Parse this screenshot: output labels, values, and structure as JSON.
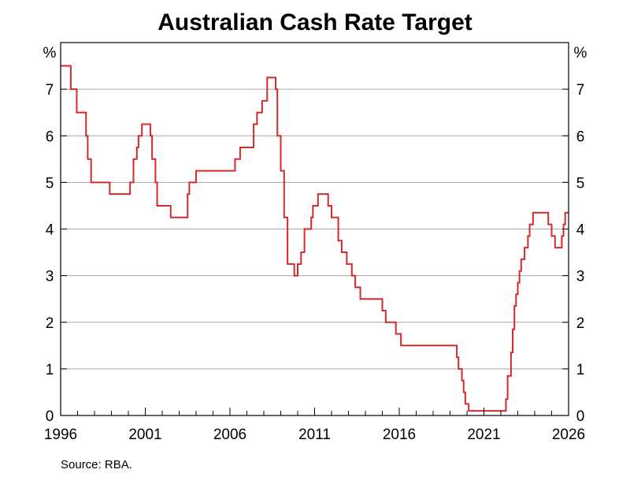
{
  "chart_data": {
    "type": "line",
    "title": "Australian Cash Rate Target",
    "y_unit_left": "%",
    "y_unit_right": "%",
    "source": "Source:   RBA.",
    "x_range": [
      1996.0,
      2026.0
    ],
    "ylim": [
      0,
      8
    ],
    "y_ticks": [
      "0",
      "1",
      "2",
      "3",
      "4",
      "5",
      "6",
      "7"
    ],
    "x_ticks": [
      "1996",
      "2001",
      "2006",
      "2011",
      "2016",
      "2021",
      "2026"
    ],
    "grid": "horizontal",
    "colors": {
      "line": "#d42a2a",
      "grid": "#a6a6a6",
      "frame": "#000000"
    },
    "series": [
      {
        "x": [
          1996.0,
          1996.55,
          1996.6,
          1996.9,
          1996.95,
          1997.5,
          1997.6,
          1997.8,
          1998.9,
          1999.9,
          2000.1,
          2000.3,
          2000.5,
          2000.6,
          2000.8,
          2001.2,
          2001.3,
          2001.4,
          2001.6,
          2001.7,
          2002.5,
          2003.5,
          2003.6,
          2004.0,
          2005.0,
          2006.3,
          2006.6,
          2007.4,
          2007.6,
          2007.9,
          2008.2,
          2008.7,
          2008.8,
          2009.0,
          2009.2,
          2009.4,
          2009.8,
          2009.9,
          2010.0,
          2010.2,
          2010.4,
          2010.8,
          2010.9,
          2011.2,
          2011.3,
          2011.8,
          2012.0,
          2012.2,
          2012.4,
          2012.6,
          2012.9,
          2013.2,
          2013.4,
          2013.7,
          2014.5,
          2015.0,
          2015.2,
          2015.4,
          2015.8,
          2016.1,
          2016.3,
          2016.5,
          2016.7,
          2017.2,
          2019.4,
          2019.5,
          2019.7,
          2019.8,
          2019.9,
          2020.1,
          2020.3,
          2020.8,
          2021.0,
          2021.3,
          2022.3,
          2022.4,
          2022.6,
          2022.7,
          2022.8,
          2022.9,
          2023.0,
          2023.1,
          2023.2,
          2023.4,
          2023.6,
          2023.7,
          2023.9,
          2024.2,
          2024.4,
          2024.6,
          2024.8,
          2025.0,
          2025.2,
          2025.4,
          2025.6,
          2025.7,
          2025.8,
          2026.0
        ],
        "y": [
          7.5,
          7.5,
          7.0,
          7.0,
          6.5,
          6.0,
          5.5,
          5.0,
          4.75,
          4.75,
          5.0,
          5.5,
          5.75,
          6.0,
          6.25,
          6.25,
          6.0,
          5.5,
          5.0,
          4.5,
          4.25,
          4.75,
          5.0,
          5.25,
          5.25,
          5.5,
          5.75,
          6.25,
          6.5,
          6.75,
          7.25,
          7.0,
          6.0,
          5.25,
          4.25,
          3.25,
          3.0,
          3.0,
          3.25,
          3.5,
          4.0,
          4.25,
          4.5,
          4.75,
          4.75,
          4.5,
          4.25,
          4.25,
          3.75,
          3.5,
          3.25,
          3.0,
          2.75,
          2.5,
          2.5,
          2.25,
          2.0,
          2.0,
          1.75,
          1.5,
          1.5,
          1.5,
          1.5,
          1.5,
          1.25,
          1.0,
          0.75,
          0.5,
          0.25,
          0.1,
          0.1,
          0.1,
          0.1,
          0.1,
          0.35,
          0.85,
          1.35,
          1.85,
          2.35,
          2.6,
          2.85,
          3.1,
          3.35,
          3.6,
          3.85,
          4.1,
          4.35,
          4.35,
          4.35,
          4.35,
          4.1,
          3.85,
          3.6,
          3.6,
          3.85,
          4.1,
          4.35,
          4.35
        ]
      }
    ]
  }
}
